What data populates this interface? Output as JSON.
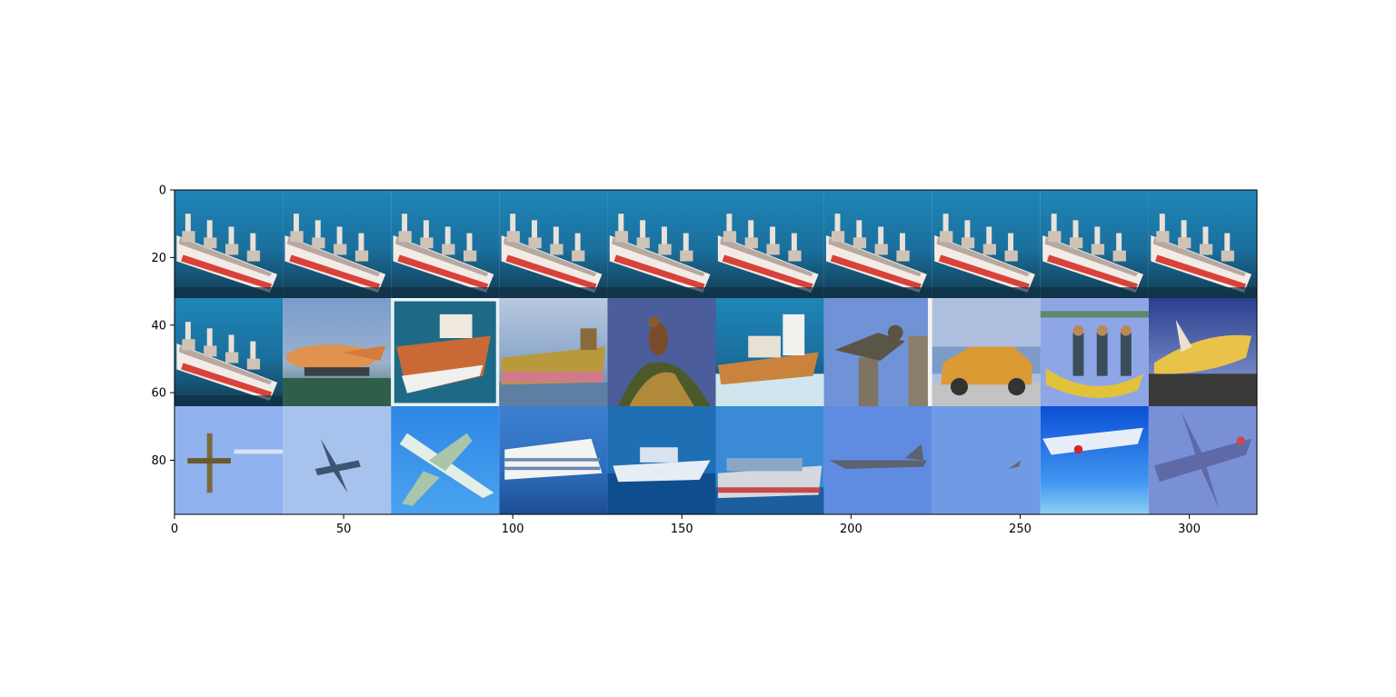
{
  "chart_data": {
    "type": "image",
    "xlim": [
      0,
      320
    ],
    "ylim": [
      96,
      0
    ],
    "x_ticks": [
      0,
      50,
      100,
      150,
      200,
      250,
      300
    ],
    "y_ticks": [
      0,
      20,
      40,
      60,
      80
    ],
    "grid": false,
    "image_grid": {
      "rows": 3,
      "cols": 10,
      "tile_size": 32,
      "tiles": [
        [
          "ship",
          "ship",
          "ship",
          "ship",
          "ship",
          "ship",
          "ship",
          "ship",
          "ship",
          "ship"
        ],
        [
          "ship",
          "airplane",
          "ship",
          "ship",
          "bird",
          "ship",
          "bird",
          "automobile",
          "ship",
          "airplane"
        ],
        [
          "airplane",
          "airplane",
          "airplane",
          "ship",
          "ship",
          "ship",
          "airplane",
          "bird",
          "airplane",
          "airplane"
        ]
      ]
    }
  }
}
